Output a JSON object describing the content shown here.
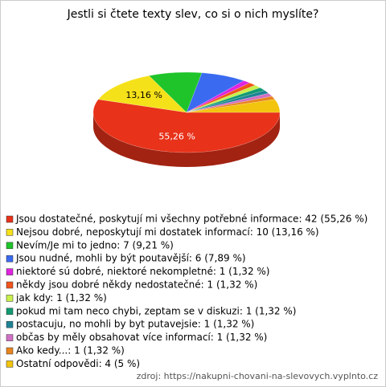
{
  "chart_data": {
    "type": "pie3d",
    "title": "Jestli si čtete texty slev, co si o nich myslíte?",
    "categories": [
      "Jsou dostatečné, poskytují mi všechny potřebné informace: 42 (55,26 %)",
      "Nejsou dobré, neposkytují mi dostatek informací: 10 (13,16 %)",
      "Nevím/Je mi to jedno: 7 (9,21 %)",
      "Jsou nudné, mohli by být poutavější: 6 (7,89 %)",
      "niektoré sú dobré, niektoré nekompletné: 1 (1,32 %)",
      "někdy jsou dobré někdy nedostatečné: 1 (1,32 %)",
      "jak kdy: 1 (1,32 %)",
      "pokud mi tam neco chybi, zeptam se v diskuzi: 1 (1,32 %)",
      "postacuju, no mohli by byt putavejsie: 1 (1,32 %)",
      "občas by měly obsahovat více informací: 1 (1,32 %)",
      "Ako kedy...: 1 (1,32 %)",
      "Ostatní odpovědi: 4 (5 %)"
    ],
    "values": [
      42,
      10,
      7,
      6,
      1,
      1,
      1,
      1,
      1,
      1,
      1,
      4
    ],
    "percents": [
      55.26,
      13.16,
      9.21,
      7.89,
      1.32,
      1.32,
      1.32,
      1.32,
      1.32,
      1.32,
      1.32,
      5
    ],
    "percent_labels": [
      "55,26 %",
      "13,16 %",
      null,
      null,
      null,
      null,
      null,
      null,
      null,
      null,
      null,
      null
    ],
    "colors": [
      "#e8321a",
      "#f5e11a",
      "#1ec42a",
      "#3a6af0",
      "#e024e0",
      "#f0541a",
      "#c8f04a",
      "#129a72",
      "#1e8294",
      "#d070c4",
      "#e8841e",
      "#f2c40e"
    ],
    "source": "zdroj: https://nakupni-chovani-na-slevovych.vyplnto.cz"
  }
}
